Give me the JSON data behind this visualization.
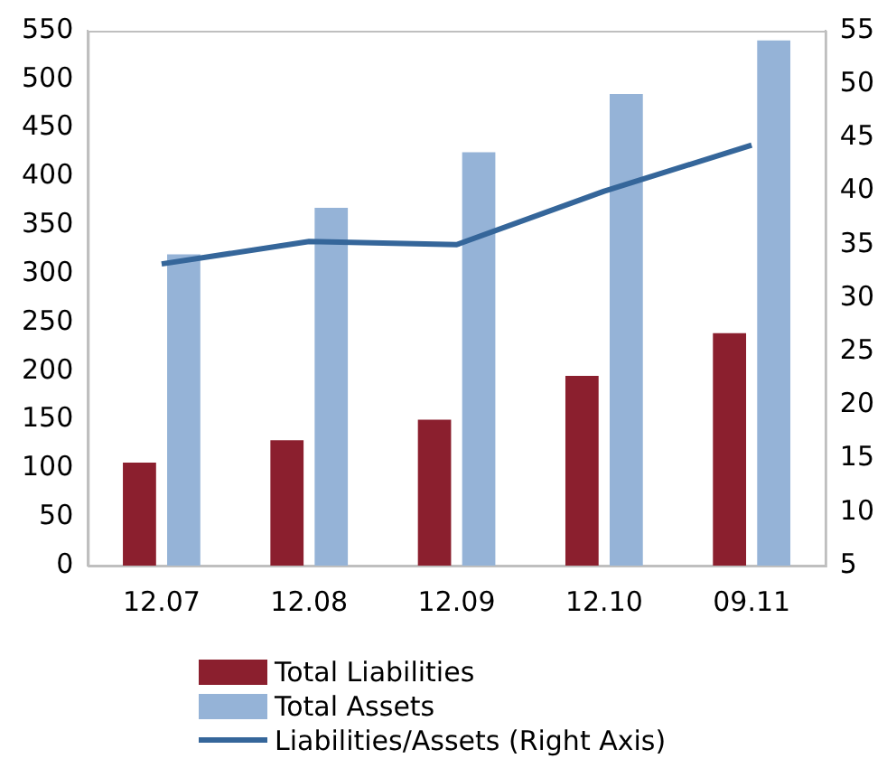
{
  "chart_data": {
    "type": "bar",
    "categories": [
      "12.07",
      "12.08",
      "12.09",
      "12.10",
      "09.11"
    ],
    "series": [
      {
        "name": "Total Liabilities",
        "color": "#8b1f2e",
        "values": [
          106,
          129,
          150,
          195,
          239
        ]
      },
      {
        "name": "Total Assets",
        "color": "#95b3d7",
        "values": [
          320,
          368,
          425,
          485,
          540
        ]
      },
      {
        "name": "Liabilities/Assets (Right Axis)",
        "type": "line",
        "axis": "y2",
        "color": "#35669a",
        "values": [
          33.2,
          35.3,
          35.0,
          40.0,
          44.3
        ]
      }
    ],
    "ylim": [
      0,
      550
    ],
    "yticks": [
      0,
      50,
      100,
      150,
      200,
      250,
      300,
      350,
      400,
      450,
      500,
      550
    ],
    "y2lim": [
      5,
      55
    ],
    "y2ticks": [
      5,
      10,
      15,
      20,
      25,
      30,
      35,
      40,
      45,
      50,
      55
    ],
    "grid": false,
    "legend": "bottom",
    "marker": "none",
    "line_style": "solid"
  }
}
